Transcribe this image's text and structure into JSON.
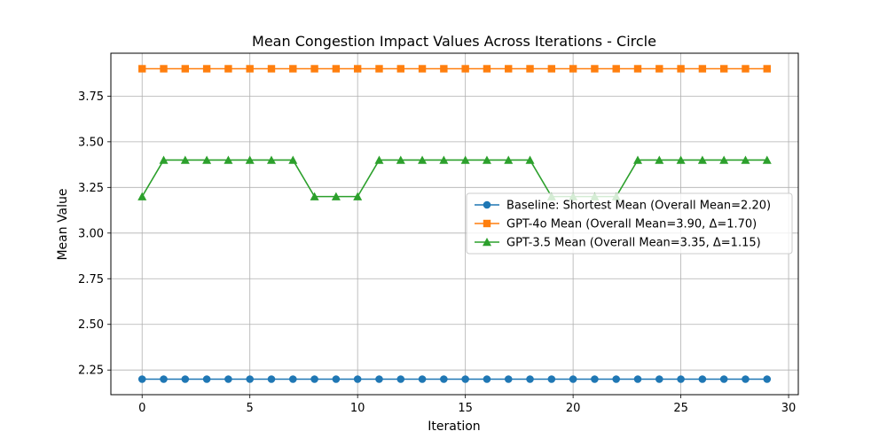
{
  "chart_data": {
    "type": "line",
    "title": "Mean Congestion Impact Values Across Iterations - Circle",
    "xlabel": "Iteration",
    "ylabel": "Mean Value",
    "xlim": [
      -1.45,
      30.45
    ],
    "ylim": [
      2.115,
      3.985
    ],
    "xticks": [
      0,
      5,
      10,
      15,
      20,
      25,
      30
    ],
    "yticks": [
      2.25,
      2.5,
      2.75,
      3.0,
      3.25,
      3.5,
      3.75
    ],
    "grid": true,
    "legend_position": "center-right",
    "x": [
      0,
      1,
      2,
      3,
      4,
      5,
      6,
      7,
      8,
      9,
      10,
      11,
      12,
      13,
      14,
      15,
      16,
      17,
      18,
      19,
      20,
      21,
      22,
      23,
      24,
      25,
      26,
      27,
      28,
      29
    ],
    "series": [
      {
        "name": "Baseline: Shortest Mean (Overall Mean=2.20)",
        "color": "#1f77b4",
        "marker": "circle",
        "values": [
          2.2,
          2.2,
          2.2,
          2.2,
          2.2,
          2.2,
          2.2,
          2.2,
          2.2,
          2.2,
          2.2,
          2.2,
          2.2,
          2.2,
          2.2,
          2.2,
          2.2,
          2.2,
          2.2,
          2.2,
          2.2,
          2.2,
          2.2,
          2.2,
          2.2,
          2.2,
          2.2,
          2.2,
          2.2,
          2.2
        ]
      },
      {
        "name": "GPT-4o Mean (Overall Mean=3.90, Δ=1.70)",
        "color": "#ff7f0e",
        "marker": "square",
        "values": [
          3.9,
          3.9,
          3.9,
          3.9,
          3.9,
          3.9,
          3.9,
          3.9,
          3.9,
          3.9,
          3.9,
          3.9,
          3.9,
          3.9,
          3.9,
          3.9,
          3.9,
          3.9,
          3.9,
          3.9,
          3.9,
          3.9,
          3.9,
          3.9,
          3.9,
          3.9,
          3.9,
          3.9,
          3.9,
          3.9
        ]
      },
      {
        "name": "GPT-3.5 Mean (Overall Mean=3.35, Δ=1.15)",
        "color": "#2ca02c",
        "marker": "triangle",
        "values": [
          3.2,
          3.4,
          3.4,
          3.4,
          3.4,
          3.4,
          3.4,
          3.4,
          3.2,
          3.2,
          3.2,
          3.4,
          3.4,
          3.4,
          3.4,
          3.4,
          3.4,
          3.4,
          3.4,
          3.2,
          3.2,
          3.2,
          3.2,
          3.4,
          3.4,
          3.4,
          3.4,
          3.4,
          3.4,
          3.4
        ]
      }
    ]
  }
}
